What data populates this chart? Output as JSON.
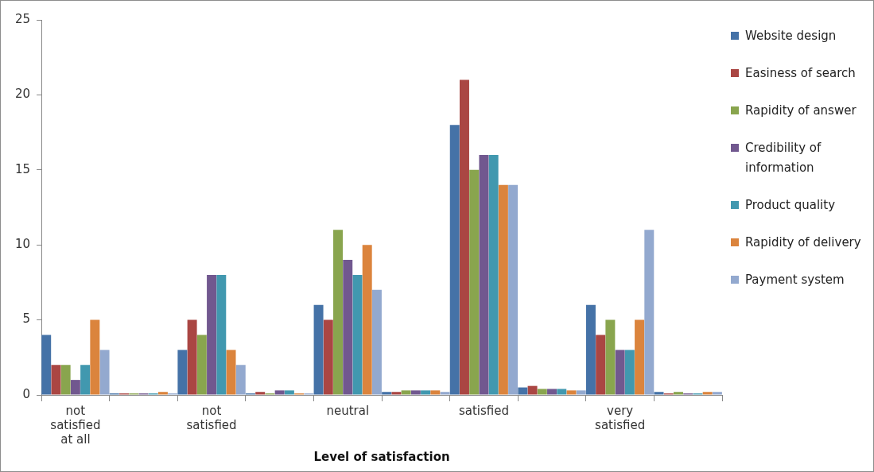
{
  "chart_data": {
    "type": "bar",
    "xlabel": "Level of satisfaction",
    "categories": [
      "not satisfied at all",
      null,
      "not satisfied",
      null,
      "neutral",
      null,
      "satisfied",
      null,
      "very satisfied",
      null
    ],
    "series": [
      {
        "name": "Website design",
        "color": "#4572a7",
        "values": [
          4,
          0.1,
          3,
          0.1,
          6,
          0.2,
          18,
          0.5,
          6,
          0.2
        ]
      },
      {
        "name": "Easiness of search",
        "color": "#aa4643",
        "values": [
          2,
          0.1,
          5,
          0.2,
          5,
          0.2,
          21,
          0.6,
          4,
          0.1
        ]
      },
      {
        "name": "Rapidity of answer",
        "color": "#89a54e",
        "values": [
          2,
          0.1,
          4,
          0.1,
          11,
          0.3,
          15,
          0.4,
          5,
          0.2
        ]
      },
      {
        "name": "Credibility of information",
        "color": "#71588f",
        "values": [
          1,
          0.1,
          8,
          0.3,
          9,
          0.3,
          16,
          0.4,
          3,
          0.1
        ]
      },
      {
        "name": "Product quality",
        "color": "#4198af",
        "values": [
          2,
          0.1,
          8,
          0.3,
          8,
          0.3,
          16,
          0.4,
          3,
          0.1
        ]
      },
      {
        "name": "Rapidity of delivery",
        "color": "#db843d",
        "values": [
          5,
          0.2,
          3,
          0.1,
          10,
          0.3,
          14,
          0.3,
          5,
          0.2
        ]
      },
      {
        "name": "Payment system",
        "color": "#93a9cf",
        "values": [
          3,
          0.1,
          2,
          0.1,
          7,
          0.2,
          14,
          0.3,
          11,
          0.2
        ]
      }
    ],
    "ylim": [
      0,
      25
    ],
    "yticks": [
      0,
      5,
      10,
      15,
      20,
      25
    ],
    "grid": false,
    "legend": "right"
  }
}
